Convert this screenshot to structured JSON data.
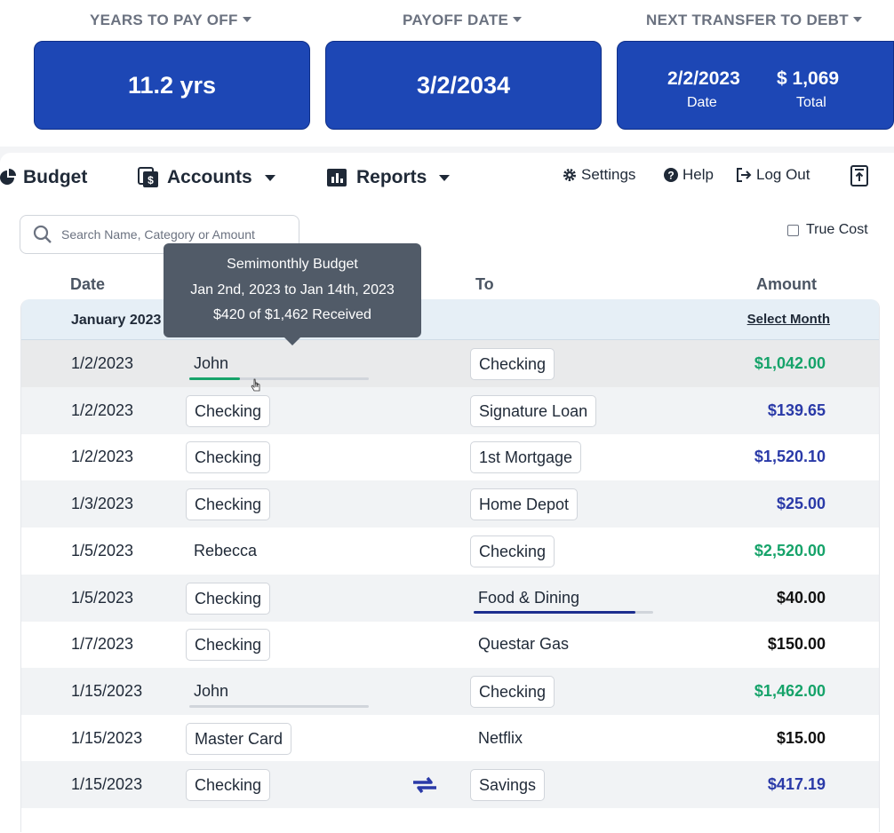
{
  "stats": [
    {
      "label": "YEARS TO PAY OFF",
      "value": "11.2 yrs"
    },
    {
      "label": "PAYOFF DATE",
      "value": "3/2/2034"
    },
    {
      "label": "NEXT TRANSFER TO DEBT",
      "date_value": "2/2/2023",
      "date_label": "Date",
      "total_value": "$ 1,069",
      "total_label": "Total"
    }
  ],
  "nav": {
    "budget": "Budget",
    "accounts": "Accounts",
    "reports": "Reports",
    "settings": "Settings",
    "help": "Help",
    "logout": "Log Out"
  },
  "search": {
    "placeholder": "Search Name, Category or Amount"
  },
  "true_cost_label": "True Cost",
  "columns": {
    "date": "Date",
    "to": "To",
    "amount": "Amount"
  },
  "month": {
    "label": "January 2023",
    "select": "Select Month"
  },
  "tooltip": {
    "title": "Semimonthly Budget",
    "range": "Jan 2nd, 2023 to Jan 14th, 2023",
    "received": "$420 of $1,462 Received"
  },
  "colors": {
    "card_blue": "#1d47b5",
    "green": "#16a36a",
    "blue_amount": "#2a3aa8",
    "black_amount": "#111111"
  },
  "transactions": [
    {
      "date": "1/2/2023",
      "from": "John",
      "to": "Checking",
      "amount": "$1,042.00",
      "amount_type": "green",
      "from_progress": 0.28
    },
    {
      "date": "1/2/2023",
      "from": "Checking",
      "to": "Signature Loan",
      "amount": "$139.65",
      "amount_type": "blue"
    },
    {
      "date": "1/2/2023",
      "from": "Checking",
      "to": "1st Mortgage",
      "amount": "$1,520.10",
      "amount_type": "blue"
    },
    {
      "date": "1/3/2023",
      "from": "Checking",
      "to": "Home Depot",
      "amount": "$25.00",
      "amount_type": "blue"
    },
    {
      "date": "1/5/2023",
      "from": "Rebecca",
      "to": "Checking",
      "amount": "$2,520.00",
      "amount_type": "green"
    },
    {
      "date": "1/5/2023",
      "from": "Checking",
      "to": "Food & Dining",
      "amount": "$40.00",
      "amount_type": "black",
      "to_progress": 0.9
    },
    {
      "date": "1/7/2023",
      "from": "Checking",
      "to": "Questar Gas",
      "amount": "$150.00",
      "amount_type": "black"
    },
    {
      "date": "1/15/2023",
      "from": "John",
      "to": "Checking",
      "amount": "$1,462.00",
      "amount_type": "green",
      "from_progress": 0
    },
    {
      "date": "1/15/2023",
      "from": "Master Card",
      "to": "Netflix",
      "amount": "$15.00",
      "amount_type": "black"
    },
    {
      "date": "1/15/2023",
      "from": "Checking",
      "to": "Savings",
      "amount": "$417.19",
      "amount_type": "blue",
      "transfer_icon": "swap-arrows-icon"
    }
  ]
}
